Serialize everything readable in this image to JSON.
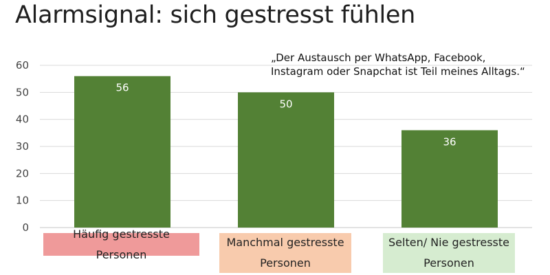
{
  "chart_data": {
    "type": "bar",
    "title": "Alarmsignal: sich gestresst fühlen",
    "annotation": "„Der Austausch per WhatsApp, Facebook,\nInstagram oder Snapchat ist Teil meines Alltags.“",
    "categories": [
      "Häufig gestresste Personen",
      "Manchmal gestresste Personen",
      "Selten/ Nie gestresste Personen"
    ],
    "values": [
      56,
      50,
      36
    ],
    "data_labels": [
      "56",
      "50",
      "36"
    ],
    "yticks": [
      0,
      10,
      20,
      30,
      40,
      50,
      60
    ],
    "ytick_labels": [
      "0",
      "10",
      "20",
      "30",
      "40",
      "50",
      "60"
    ],
    "ylim": [
      0,
      60
    ],
    "grid": true,
    "xlabel": "",
    "ylabel": "",
    "bar_color": "#538135",
    "grid_color": "#d9d9d9",
    "category_colors": [
      "#ef9a9a",
      "#f8cbad",
      "#d6ecd0"
    ]
  }
}
